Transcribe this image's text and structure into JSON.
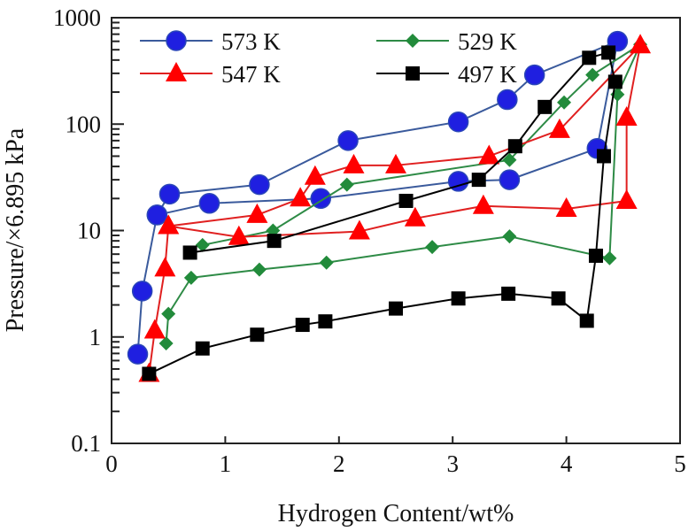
{
  "chart_data": {
    "type": "line",
    "title": "",
    "xlabel": "Hydrogen Content/wt%",
    "ylabel": "Pressure/×6.895 kPa",
    "xlim": [
      0,
      5
    ],
    "ylim": [
      0.1,
      1000
    ],
    "yscale": "log",
    "grid": false,
    "legend_position": "top-left",
    "x_ticks": [
      "0",
      "1",
      "2",
      "3",
      "4",
      "5"
    ],
    "y_ticks": [
      "0.1",
      "1",
      "10",
      "100",
      "1000"
    ],
    "series": [
      {
        "name": "573 K",
        "color": "#1f1fe0",
        "line_color": "#3a5a9c",
        "marker": "circle",
        "points": [
          [
            0.23,
            0.69
          ],
          [
            0.27,
            2.7
          ],
          [
            0.4,
            14
          ],
          [
            0.86,
            18
          ],
          [
            1.84,
            20
          ],
          [
            3.05,
            29
          ],
          [
            3.5,
            30
          ],
          [
            4.27,
            59
          ],
          [
            4.45,
            600
          ],
          [
            3.72,
            290
          ],
          [
            3.48,
            170
          ],
          [
            3.05,
            105
          ],
          [
            2.08,
            70
          ],
          [
            1.3,
            27
          ],
          [
            0.51,
            22
          ],
          [
            0.4,
            14
          ]
        ]
      },
      {
        "name": "529 K",
        "color": "#228b3b",
        "line_color": "#2e8b46",
        "marker": "diamond",
        "points": [
          [
            0.48,
            0.87
          ],
          [
            0.5,
            1.65
          ],
          [
            0.7,
            3.6
          ],
          [
            1.3,
            4.3
          ],
          [
            1.89,
            5.0
          ],
          [
            2.82,
            7.0
          ],
          [
            3.5,
            8.8
          ],
          [
            4.38,
            5.5
          ],
          [
            4.45,
            190
          ],
          [
            4.65,
            560
          ],
          [
            4.23,
            290
          ],
          [
            3.98,
            160
          ],
          [
            3.5,
            46
          ],
          [
            2.07,
            27
          ],
          [
            1.42,
            10
          ],
          [
            0.8,
            7.3
          ]
        ]
      },
      {
        "name": "547 K",
        "color": "#ff0000",
        "line_color": "#e02020",
        "marker": "triangle",
        "points": [
          [
            0.33,
            0.45
          ],
          [
            0.38,
            1.15
          ],
          [
            0.47,
            4.4
          ],
          [
            0.5,
            11
          ],
          [
            1.12,
            8.7
          ],
          [
            2.18,
            9.8
          ],
          [
            2.67,
            13
          ],
          [
            3.27,
            17
          ],
          [
            4.0,
            16
          ],
          [
            4.53,
            19
          ],
          [
            4.53,
            115
          ],
          [
            4.65,
            550
          ],
          [
            3.94,
            88
          ],
          [
            3.32,
            50
          ],
          [
            2.5,
            41
          ],
          [
            2.13,
            41
          ],
          [
            1.79,
            32
          ],
          [
            1.66,
            20
          ],
          [
            1.28,
            14
          ],
          [
            0.5,
            11
          ]
        ]
      },
      {
        "name": "497 K",
        "color": "#000000",
        "line_color": "#000000",
        "marker": "square",
        "points": [
          [
            0.33,
            0.45
          ],
          [
            0.8,
            0.78
          ],
          [
            1.28,
            1.05
          ],
          [
            1.68,
            1.3
          ],
          [
            1.88,
            1.4
          ],
          [
            2.5,
            1.85
          ],
          [
            3.05,
            2.3
          ],
          [
            3.49,
            2.55
          ],
          [
            3.93,
            2.3
          ],
          [
            4.18,
            1.42
          ],
          [
            4.26,
            5.8
          ],
          [
            4.33,
            50
          ],
          [
            4.43,
            250
          ],
          [
            4.37,
            470
          ],
          [
            4.2,
            420
          ],
          [
            3.81,
            145
          ],
          [
            3.55,
            62
          ],
          [
            3.23,
            30
          ],
          [
            2.59,
            19
          ],
          [
            1.43,
            8.0
          ],
          [
            0.69,
            6.2
          ]
        ]
      }
    ]
  }
}
